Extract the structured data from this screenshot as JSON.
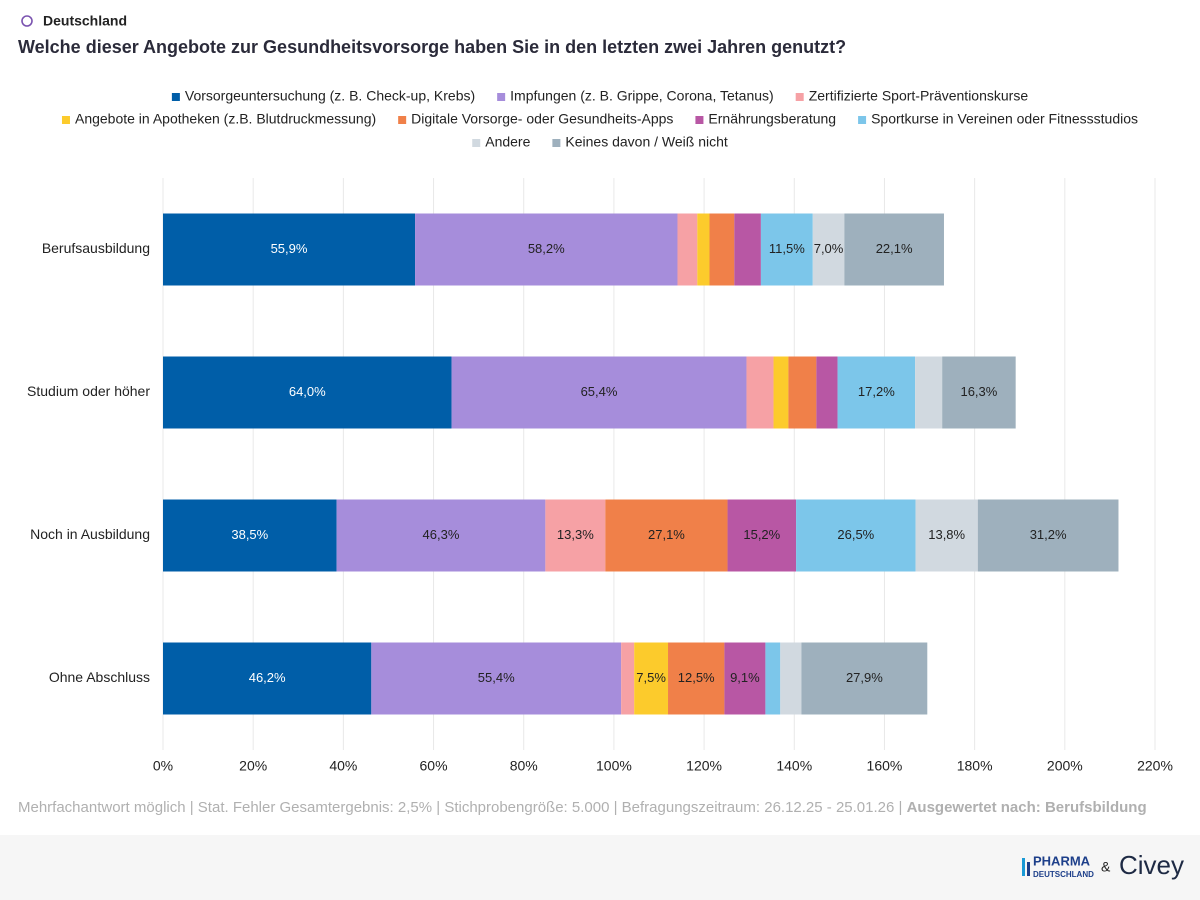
{
  "chart_data": {
    "type": "stacked-bar-horizontal",
    "region": "Deutschland",
    "title": "Welche dieser Angebote zur Gesundheitsvorsorge haben Sie in den letzten zwei Jahren genutzt?",
    "categories": [
      "Berufsausbildung",
      "Studium oder höher",
      "Noch in Ausbildung",
      "Ohne Abschluss"
    ],
    "series": [
      {
        "name": "Vorsorgeuntersuchung (z. B. Check-up, Krebs)",
        "color": "#005ea8",
        "values": [
          55.9,
          64.0,
          38.5,
          46.2
        ],
        "value_labels": [
          "55,9%",
          "64,0%",
          "38,5%",
          "46,2%"
        ]
      },
      {
        "name": "Impfungen (z. B. Grippe, Corona, Tetanus)",
        "color": "#a68ddb",
        "values": [
          58.2,
          65.4,
          46.3,
          55.4
        ],
        "value_labels": [
          "58,2%",
          "65,4%",
          "46,3%",
          "55,4%"
        ]
      },
      {
        "name": "Zertifizierte Sport-Präventionskurse",
        "color": "#f6a1a5",
        "values": [
          4.4,
          6.0,
          13.3,
          2.9
        ],
        "value_labels": [
          null,
          null,
          "13,3%",
          null
        ]
      },
      {
        "name": "Angebote in Apotheken (z.B. Blutdruckmessung)",
        "color": "#fccb2c",
        "values": [
          2.7,
          3.3,
          0.0,
          7.5
        ],
        "value_labels": [
          null,
          null,
          null,
          "7,5%"
        ]
      },
      {
        "name": "Digitale Vorsorge- oder Gesundheits-Apps",
        "color": "#f08049",
        "values": [
          5.5,
          6.2,
          27.1,
          12.5
        ],
        "value_labels": [
          null,
          null,
          "27,1%",
          "12,5%"
        ]
      },
      {
        "name": "Ernährungsberatung",
        "color": "#b857a4",
        "values": [
          5.9,
          4.7,
          15.2,
          9.1
        ],
        "value_labels": [
          null,
          null,
          "15,2%",
          "9,1%"
        ]
      },
      {
        "name": "Sportkurse in Vereinen oder Fitnessstudios",
        "color": "#7cc6ea",
        "values": [
          11.5,
          17.2,
          26.5,
          3.3
        ],
        "value_labels": [
          "11,5%",
          "17,2%",
          "26,5%",
          null
        ]
      },
      {
        "name": "Andere",
        "color": "#d1d9e0",
        "values": [
          7.0,
          6.0,
          13.8,
          4.7
        ],
        "value_labels": [
          "7,0%",
          null,
          "13,8%",
          null
        ]
      },
      {
        "name": "Keines davon / Weiß nicht",
        "color": "#9eb0bd",
        "values": [
          22.1,
          16.3,
          31.2,
          27.9
        ],
        "value_labels": [
          "22,1%",
          "16,3%",
          "31,2%",
          "27,9%"
        ]
      }
    ],
    "xlim": [
      0,
      220
    ],
    "xticks": [
      {
        "value": 0,
        "label": "0%"
      },
      {
        "value": 20,
        "label": "20%"
      },
      {
        "value": 40,
        "label": "40%"
      },
      {
        "value": 60,
        "label": "60%"
      },
      {
        "value": 80,
        "label": "80%"
      },
      {
        "value": 100,
        "label": "100%"
      },
      {
        "value": 120,
        "label": "120%"
      },
      {
        "value": 140,
        "label": "140%"
      },
      {
        "value": 160,
        "label": "160%"
      },
      {
        "value": 180,
        "label": "180%"
      },
      {
        "value": 200,
        "label": "200%"
      },
      {
        "value": 220,
        "label": "220%"
      }
    ],
    "grid": true,
    "footnote": "Mehrfachantwort möglich | Stat. Fehler Gesamtergebnis: 2,5% | Stichprobengröße: 5.000 | Befragungszeitraum: 26.12.25 - 25.01.26 |",
    "footnote_bold": "Ausgewertet nach: Berufsbildung",
    "brand_1": "PHARMA",
    "brand_1_sub": "DEUTSCHLAND",
    "brand_amp": "&",
    "brand_2": "Civey"
  }
}
